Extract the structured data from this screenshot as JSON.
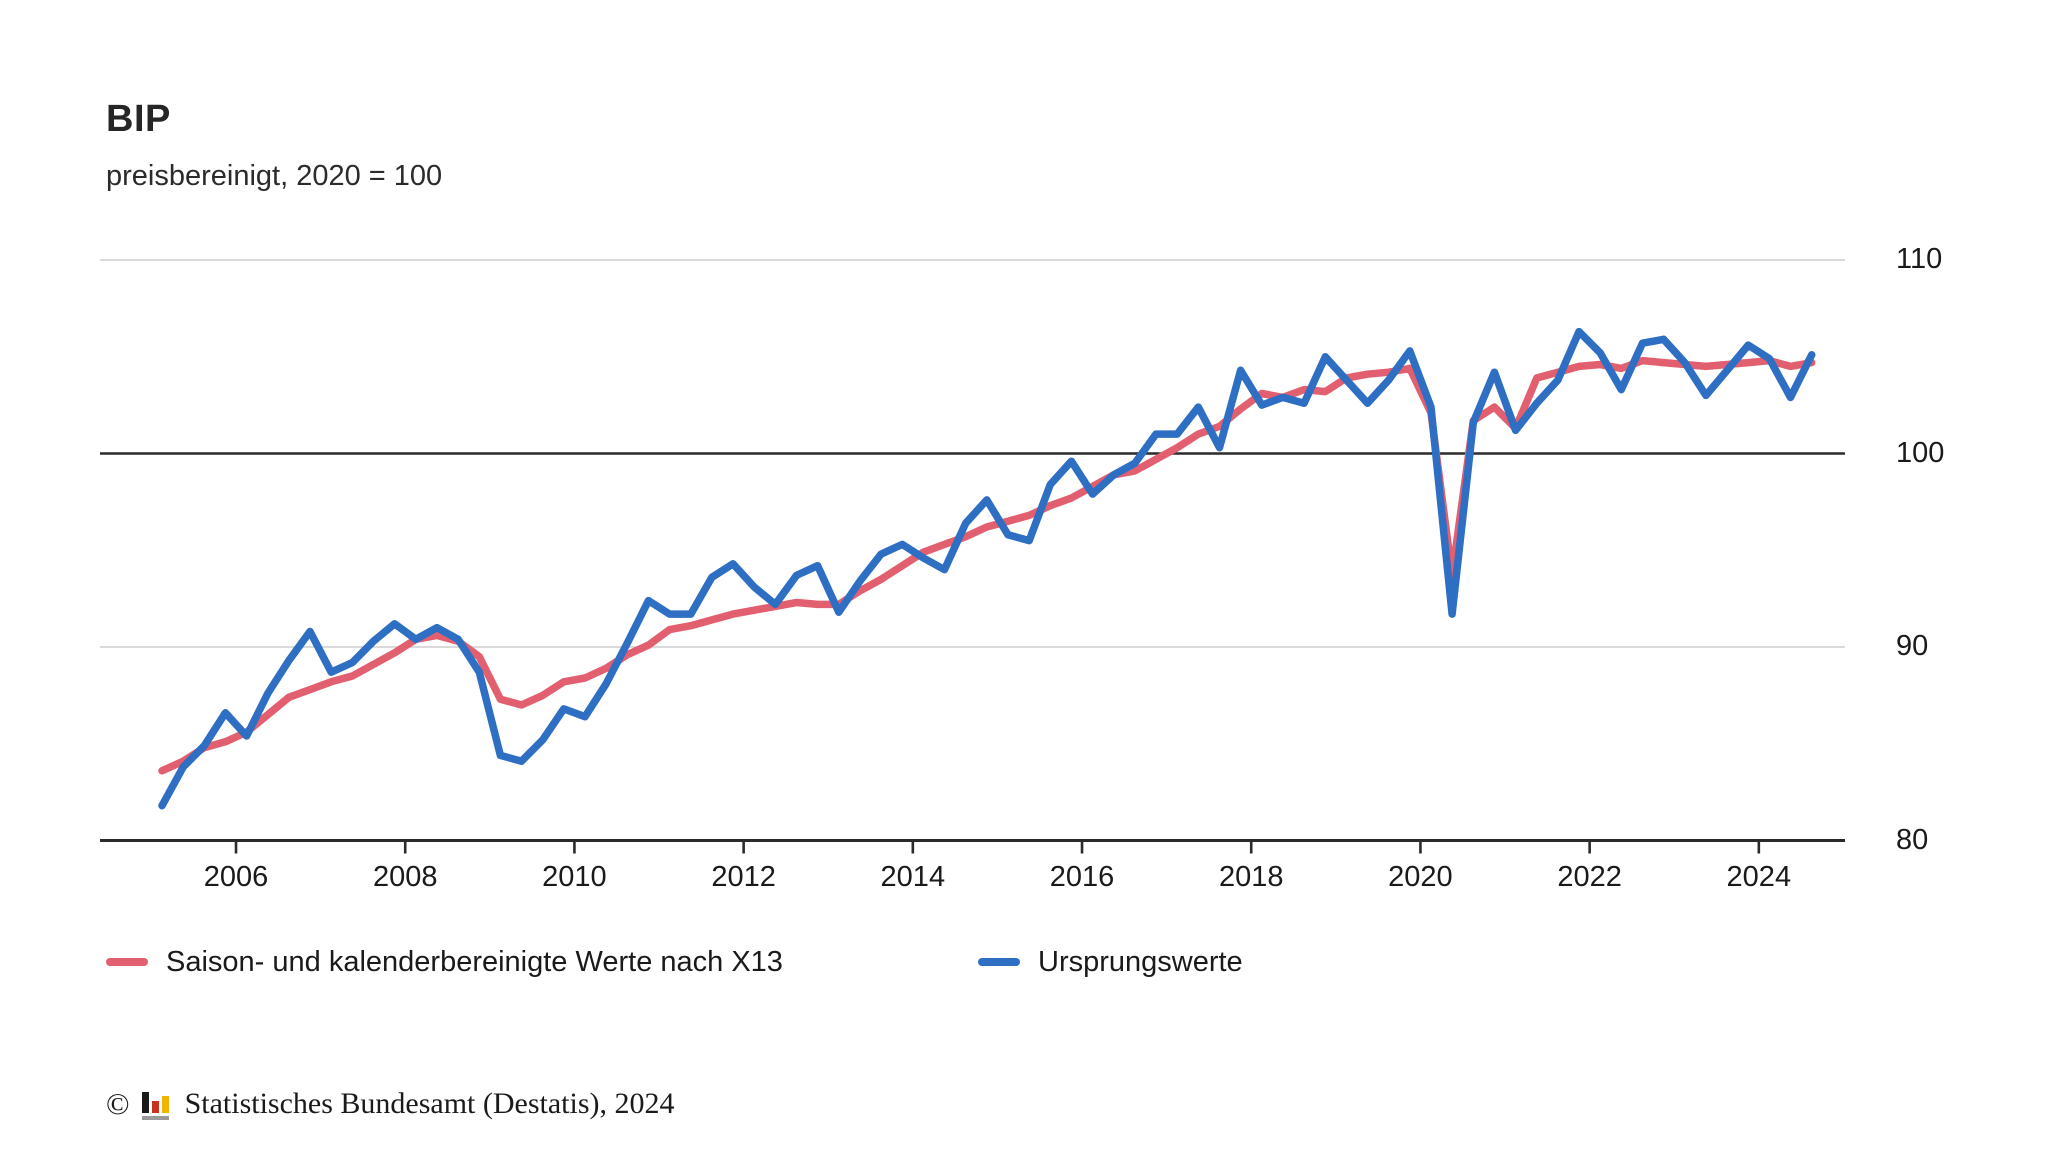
{
  "header": {
    "title": "BIP",
    "subtitle": "preisbereinigt, 2020 = 100"
  },
  "footer": {
    "copyright_symbol": "©",
    "logo_icon": "destatis-bar-chart-icon",
    "text": "Statistisches Bundesamt (Destatis), 2024"
  },
  "colors": {
    "adjusted_series": "#e25f6f",
    "original_series": "#2e6ec3",
    "grid_light": "#cdcdcd",
    "baseline_dark": "#2b2b2b",
    "axis": "#2b2b2b",
    "text": "#1a1a1a",
    "logo_black": "#1a1a1a",
    "logo_red": "#c9321e",
    "logo_gold": "#f0b400",
    "logo_base_gray": "#9a9a9a"
  },
  "chart_data": {
    "type": "line",
    "title": "BIP",
    "subtitle": "preisbereinigt, 2020 = 100",
    "frequency": "quarterly",
    "start_period": "2005-Q1",
    "end_period": "2024-Q3",
    "x_ticks": [
      "2006",
      "2008",
      "2010",
      "2012",
      "2014",
      "2016",
      "2018",
      "2020",
      "2022",
      "2024"
    ],
    "y_ticks": [
      80,
      90,
      100,
      110
    ],
    "ylim": [
      79,
      111.5
    ],
    "baseline_value": 100,
    "grid": "horizontal-only",
    "legend_position": "bottom-left",
    "series": [
      {
        "name": "Saison- und kalenderbereinigte Werte nach X13",
        "color": "#e25f6f",
        "values": [
          83.6,
          84.1,
          84.8,
          85.1,
          85.6,
          86.5,
          87.4,
          87.8,
          88.2,
          88.5,
          89.1,
          89.7,
          90.4,
          90.6,
          90.3,
          89.5,
          87.3,
          87.0,
          87.5,
          88.2,
          88.4,
          88.9,
          89.6,
          90.1,
          90.9,
          91.1,
          91.4,
          91.7,
          91.9,
          92.1,
          92.3,
          92.2,
          92.2,
          92.9,
          93.5,
          94.2,
          94.9,
          95.3,
          95.7,
          96.2,
          96.5,
          96.8,
          97.3,
          97.7,
          98.3,
          98.9,
          99.1,
          99.7,
          100.3,
          101.0,
          101.4,
          102.3,
          103.1,
          102.9,
          103.3,
          103.2,
          103.9,
          104.1,
          104.2,
          104.4,
          102.1,
          93.7,
          101.7,
          102.4,
          101.3,
          103.9,
          104.2,
          104.5,
          104.6,
          104.4,
          104.8,
          104.7,
          104.6,
          104.5,
          104.6,
          104.7,
          104.8,
          104.5,
          104.7
        ]
      },
      {
        "name": "Ursprungswerte",
        "color": "#2e6ec3",
        "values": [
          81.8,
          83.8,
          84.9,
          86.6,
          85.4,
          87.6,
          89.3,
          90.8,
          88.7,
          89.2,
          90.3,
          91.2,
          90.4,
          91.0,
          90.4,
          88.7,
          84.4,
          84.1,
          85.2,
          86.8,
          86.4,
          88.1,
          90.2,
          92.4,
          91.7,
          91.7,
          93.6,
          94.3,
          93.1,
          92.2,
          93.7,
          94.2,
          91.8,
          93.4,
          94.8,
          95.3,
          94.6,
          94.0,
          96.4,
          97.6,
          95.8,
          95.5,
          98.4,
          99.6,
          97.9,
          98.9,
          99.5,
          101.0,
          101.0,
          102.4,
          100.3,
          104.3,
          102.5,
          102.9,
          102.6,
          105.0,
          103.8,
          102.6,
          103.8,
          105.3,
          102.4,
          91.7,
          101.6,
          104.2,
          101.2,
          102.6,
          103.8,
          106.3,
          105.2,
          103.3,
          105.7,
          105.9,
          104.7,
          103.0,
          104.3,
          105.6,
          104.9,
          102.9,
          105.1
        ]
      }
    ]
  }
}
